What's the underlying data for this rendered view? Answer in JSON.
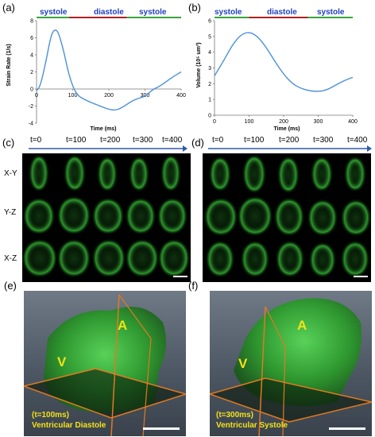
{
  "panels": {
    "a": {
      "label": "(a)",
      "phases": [
        "systole",
        "diastole",
        "systole"
      ],
      "ylabel": "Strain Rate (1/s)",
      "xlabel": "Time (ms)",
      "yticks": [
        "-4",
        "-2",
        "0",
        "2",
        "4",
        "6",
        "8"
      ],
      "xticks": [
        "0",
        "100",
        "200",
        "300",
        "400"
      ]
    },
    "b": {
      "label": "(b)",
      "phases": [
        "systole",
        "diastole",
        "systole"
      ],
      "ylabel": "Volume (10⁵ um³)",
      "xlabel": "Time (ms)",
      "yticks": [
        "0",
        "1",
        "2",
        "3",
        "4",
        "5",
        "6"
      ],
      "xticks": [
        "0",
        "100",
        "200",
        "300",
        "400"
      ]
    },
    "c": {
      "label": "(c)",
      "times": [
        "t=0",
        "t=100",
        "t=200",
        "t=300",
        "t=400"
      ],
      "rows": [
        "X-Y",
        "Y-Z",
        "X-Z"
      ]
    },
    "d": {
      "label": "(d)",
      "times": [
        "t=0",
        "t=100",
        "t=200",
        "t=300",
        "t=400"
      ]
    },
    "e": {
      "label": "(e)",
      "atrium": "A",
      "ventricle": "V",
      "caption_line1": "(t=100ms)",
      "caption_line2": "Ventricular Diastole"
    },
    "f": {
      "label": "(f)",
      "atrium": "A",
      "ventricle": "V",
      "caption_line1": "(t=300ms)",
      "caption_line2": "Ventricular Systole"
    }
  },
  "chart_data": [
    {
      "type": "line",
      "ylabel": "Strain Rate (1/s)",
      "xlabel": "Time (ms)",
      "xlim": [
        0,
        400
      ],
      "ylim": [
        -4,
        8
      ],
      "phase_bands": [
        {
          "label": "systole",
          "from": 0,
          "to": 90,
          "color": "#3aa53a"
        },
        {
          "label": "diastole",
          "from": 90,
          "to": 250,
          "color": "#b02020"
        },
        {
          "label": "systole",
          "from": 250,
          "to": 400,
          "color": "#3aa53a"
        }
      ],
      "series": [
        {
          "color": "#4a90d9",
          "x": [
            0,
            10,
            25,
            40,
            50,
            60,
            75,
            90,
            110,
            140,
            170,
            200,
            220,
            240,
            260,
            280,
            300,
            320,
            340,
            360,
            380,
            400
          ],
          "y": [
            -0.2,
            0.3,
            3.0,
            6.3,
            7.0,
            6.7,
            4.5,
            1.5,
            -0.7,
            -1.4,
            -1.9,
            -2.4,
            -2.5,
            -2.1,
            -1.5,
            -1.1,
            -0.9,
            -0.1,
            0.3,
            0.9,
            1.5,
            2.0
          ]
        }
      ]
    },
    {
      "type": "line",
      "ylabel": "Volume (10⁵ um³)",
      "xlabel": "Time (ms)",
      "xlim": [
        0,
        400
      ],
      "ylim": [
        0,
        6
      ],
      "phase_bands": [
        {
          "label": "systole",
          "from": 0,
          "to": 100,
          "color": "#3aa53a"
        },
        {
          "label": "diastole",
          "from": 100,
          "to": 270,
          "color": "#b02020"
        },
        {
          "label": "systole",
          "from": 270,
          "to": 400,
          "color": "#3aa53a"
        }
      ],
      "series": [
        {
          "color": "#4a90d9",
          "x": [
            0,
            25,
            50,
            75,
            100,
            125,
            150,
            175,
            200,
            225,
            250,
            275,
            300,
            325,
            350,
            375,
            400
          ],
          "y": [
            2.5,
            3.4,
            4.4,
            5.1,
            5.3,
            5.0,
            4.3,
            3.4,
            2.6,
            2.0,
            1.7,
            1.55,
            1.5,
            1.6,
            1.9,
            2.2,
            2.4
          ]
        }
      ]
    }
  ]
}
